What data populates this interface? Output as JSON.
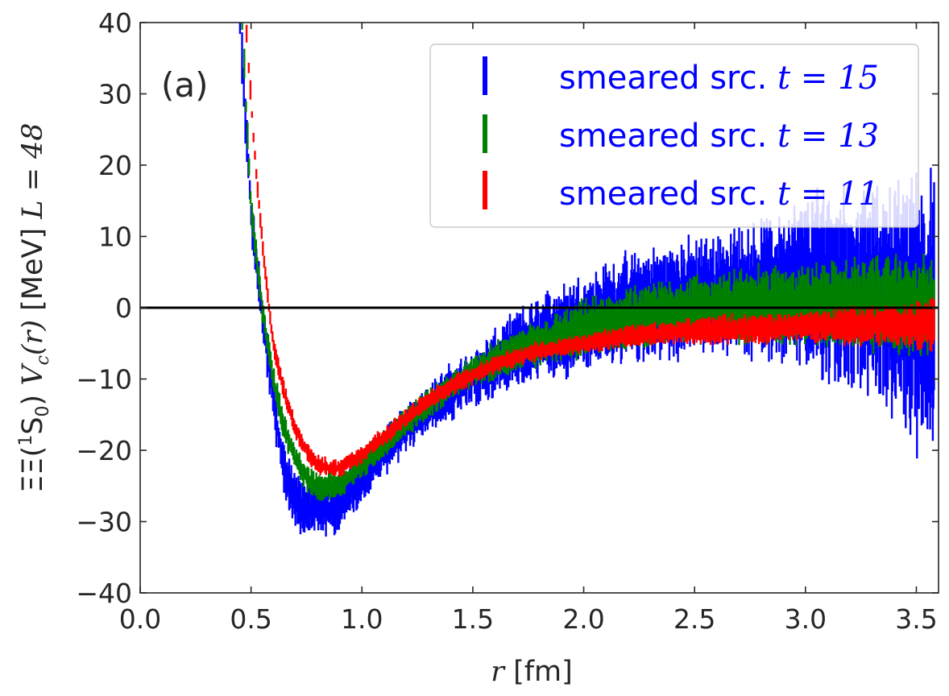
{
  "chart_data": {
    "type": "scatter",
    "panel_label": "(a)",
    "xlabel": {
      "var": "r",
      "unit": "[fm]"
    },
    "ylabel": {
      "prefix": "ΞΞ(",
      "sup": "1",
      "state": "S",
      "sub": "0",
      "mid": ") ",
      "func": "V",
      "func_sub": "c",
      "func_arg": "(r)",
      "unit": " [MeV] ",
      "lattice": "L = 48"
    },
    "xlim": [
      0.0,
      3.6
    ],
    "ylim": [
      -40,
      40
    ],
    "x_ticks": [
      "0.0",
      "0.5",
      "1.0",
      "1.5",
      "2.0",
      "2.5",
      "3.0",
      "3.5"
    ],
    "y_ticks": [
      "−40",
      "−30",
      "−20",
      "−10",
      "0",
      "10",
      "20",
      "30",
      "40"
    ],
    "zero_line": 0,
    "series": [
      {
        "name": "smeared src. t = 15",
        "legend_prefix": "smeared src. ",
        "legend_var": "t",
        "legend_eq": " = 15",
        "color": "#0000ff",
        "x": [
          0.45,
          0.5,
          0.55,
          0.6,
          0.65,
          0.7,
          0.75,
          0.8,
          0.85,
          0.9,
          1.0,
          1.1,
          1.2,
          1.3,
          1.4,
          1.5,
          1.6,
          1.7,
          1.8,
          1.9,
          2.0,
          2.2,
          2.4,
          2.6,
          2.8,
          3.0,
          3.1,
          3.2,
          3.3,
          3.4,
          3.5,
          3.58
        ],
        "y": [
          40,
          13,
          -1,
          -13,
          -23,
          -27,
          -28,
          -28,
          -28,
          -27.5,
          -24,
          -20,
          -17,
          -14,
          -12,
          -10,
          -8,
          -6,
          -4.5,
          -3,
          -2,
          0,
          1,
          2,
          2.5,
          3,
          3,
          2.5,
          2,
          1,
          0,
          -1
        ],
        "err": [
          3,
          2.5,
          2.5,
          3,
          3,
          3,
          3,
          3,
          3,
          3,
          2.5,
          2.5,
          2.5,
          2.5,
          3,
          3,
          3.5,
          4,
          4.5,
          5,
          5,
          5.5,
          6,
          6,
          7,
          9,
          11,
          10,
          10,
          12,
          14,
          14
        ]
      },
      {
        "name": "smeared src. t = 13",
        "legend_prefix": "smeared src. ",
        "legend_var": "t",
        "legend_eq": " = 13",
        "color": "#008000",
        "x": [
          0.46,
          0.5,
          0.55,
          0.6,
          0.65,
          0.7,
          0.75,
          0.8,
          0.85,
          0.9,
          1.0,
          1.1,
          1.2,
          1.3,
          1.4,
          1.5,
          1.6,
          1.7,
          1.8,
          1.9,
          2.0,
          2.2,
          2.4,
          2.6,
          2.8,
          3.0,
          3.2,
          3.4,
          3.58
        ],
        "y": [
          40,
          14,
          0,
          -10,
          -17,
          -21,
          -24,
          -25,
          -25,
          -25,
          -22,
          -19,
          -16,
          -13.5,
          -11,
          -9,
          -7.5,
          -6,
          -5,
          -4,
          -3,
          -1.5,
          -0.5,
          0,
          0.5,
          0.5,
          0.5,
          0.5,
          0
        ],
        "err": [
          2,
          1.5,
          1.5,
          1.5,
          1.5,
          1.5,
          1.5,
          1.5,
          1.5,
          1.5,
          1.5,
          1.5,
          1.5,
          1.5,
          1.5,
          1.5,
          2,
          2,
          2.5,
          2.5,
          3,
          3,
          3.5,
          3.5,
          4,
          4,
          4.5,
          5,
          5
        ]
      },
      {
        "name": "smeared src. t = 11",
        "legend_prefix": "smeared src. ",
        "legend_var": "t",
        "legend_eq": " = 11",
        "color": "#ff0000",
        "x": [
          0.48,
          0.52,
          0.56,
          0.6,
          0.65,
          0.7,
          0.75,
          0.8,
          0.85,
          0.9,
          1.0,
          1.1,
          1.2,
          1.3,
          1.4,
          1.5,
          1.6,
          1.7,
          1.8,
          1.9,
          2.0,
          2.2,
          2.4,
          2.6,
          2.8,
          3.0,
          3.2,
          3.4,
          3.58
        ],
        "y": [
          38,
          20,
          6,
          -5,
          -12,
          -17,
          -20,
          -22,
          -22.5,
          -22.5,
          -20.5,
          -18,
          -15.5,
          -13,
          -11,
          -9.5,
          -8,
          -7,
          -6,
          -5.5,
          -5,
          -4,
          -3.5,
          -3,
          -3,
          -2.5,
          -2.5,
          -2.5,
          -2.5
        ],
        "err": [
          1.5,
          1,
          1,
          1,
          1,
          1,
          1,
          1,
          1,
          1,
          1,
          1,
          1,
          1,
          1,
          1,
          1,
          1,
          1,
          1,
          1,
          1.2,
          1.2,
          1.5,
          1.5,
          1.5,
          2,
          2,
          3
        ]
      }
    ]
  }
}
